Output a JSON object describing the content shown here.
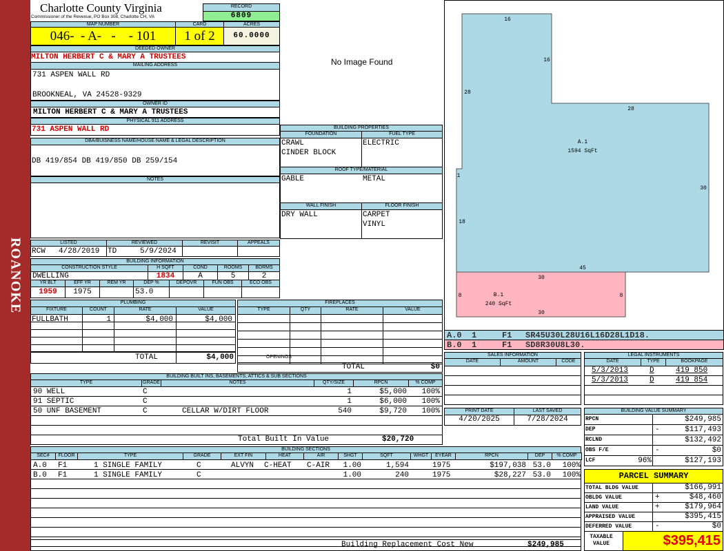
{
  "sidebar": {
    "label": "ROANOKE"
  },
  "header": {
    "title": "Charlotte County Virginia",
    "subtitle": "Commissioner of the Revenue, PO Box 308, Charlotte CH, VA",
    "record_label": "RECORD",
    "record": "6809"
  },
  "parcel": {
    "map_number_label": "MAP NUMBER",
    "map_number": "046-  - A-   -    - 101",
    "card_label": "CARD",
    "card": "1 of 2",
    "acres_label": "ACRES",
    "acres": "60.0000"
  },
  "owner": {
    "deeded_label": "DEEDED OWNER",
    "deeded": "MILTON HERBERT C & MARY A TRUSTEES",
    "mailing_label": "MAILING ADDRESS",
    "mailing_line1": "731 ASPEN WALL RD",
    "mailing_line2": "BROOKNEAL, VA 24528-9329",
    "owner_id_label": "OWNER ID",
    "owner_id": "MILTON HERBERT C & MARY A TRUSTEES",
    "physical_label": "PHYSICAL 911 ADDRESS",
    "physical": "731 ASPEN WALL RD",
    "dba_label": "DBA/BUISNESS NAME/HOUSE NAME & LEGAL DESCRIPTION",
    "dba": "DB 419/854 DB 419/850 DB 259/154",
    "notes_label": "NOTES"
  },
  "image": {
    "text": "No Image Found"
  },
  "listing": {
    "headers": [
      "LISTED",
      "REVIEWED",
      "REVISIT",
      "APPEALS"
    ],
    "listed_by": "RCW",
    "listed_date": "4/28/2019",
    "reviewed_by": "TD",
    "reviewed_date": "5/9/2024"
  },
  "building_info": {
    "title": "BUILDING INFORMATION",
    "headers1": [
      "CONSTRUCTION STYLE",
      "H SQFT",
      "COND",
      "ROOMS",
      "BDRMS"
    ],
    "values1": [
      "DWELLING",
      "1834",
      "A",
      "5",
      "2"
    ],
    "headers2": [
      "YR BLT",
      "EFF YR",
      "REM YR",
      "DEP %",
      "DEPOVR",
      "FUN OBS",
      "ECO OBS"
    ],
    "values2": [
      "1959",
      "1975",
      "",
      "53.0",
      "",
      "",
      ""
    ]
  },
  "building_properties": {
    "title": "BUILDING PROPERTIES",
    "foundation_label": "FOUNDATION",
    "foundation": [
      "CRAWL",
      "CINDER BLOCK"
    ],
    "fuel_label": "FUEL TYPE",
    "fuel": "ELECTRIC",
    "roof_label": "ROOF TYPE/MATERIAL",
    "roof_type": "GABLE",
    "roof_material": "METAL",
    "wall_label": "WALL FINISH",
    "wall": "DRY WALL",
    "floor_label": "FLOOR FINISH",
    "floor": [
      "CARPET",
      "VINYL"
    ]
  },
  "plumbing": {
    "title": "PLUMBING",
    "headers": [
      "FIXTURE",
      "COUNT",
      "RATE",
      "VALUE"
    ],
    "rows": [
      [
        "FULLBATH",
        "1",
        "$4,000",
        "$4,000"
      ]
    ],
    "total_label": "TOTAL",
    "total": "$4,000"
  },
  "fireplaces": {
    "title": "FIREPLACES",
    "headers": [
      "TYPE",
      "QTY",
      "RATE",
      "VALUE"
    ],
    "openings_label": "OPENINGS",
    "total_label": "TOTAL",
    "total": "$0"
  },
  "built_ins": {
    "title": "BUILDING BUILT INS, BASEMENTS, ATTICS & SUB SECTIONS",
    "headers": [
      "TYPE",
      "GRADE",
      "NOTES",
      "QTY/SIZE",
      "RPCN",
      "% COMP"
    ],
    "rows": [
      [
        "90 WELL",
        "C",
        "",
        "1",
        "$5,000",
        "100%"
      ],
      [
        "91 SEPTIC",
        "C",
        "",
        "1",
        "$6,000",
        "100%"
      ],
      [
        "50 UNF BASEMENT",
        "C",
        "CELLAR W/DIRT FLOOR",
        "540",
        "$9,720",
        "100%"
      ]
    ],
    "total_label": "Total Built In Value",
    "total": "$20,720"
  },
  "sections": {
    "title": "BUILDING SECTIONS",
    "headers": [
      "SEC#",
      "FLOOR",
      "TYPE",
      "GRADE",
      "EXT FIN",
      "HEAT",
      "AIR",
      "SHGT",
      "SQFT",
      "WHGT",
      "EYEAR",
      "RPCN",
      "DEP",
      "% COMP"
    ],
    "rows": [
      [
        "A.0",
        "F1",
        "1 SINGLE FAMILY",
        "C",
        "ALVYN",
        "C-HEAT",
        "C-AIR",
        "1.00",
        "1,594",
        "",
        "1975",
        "$197,038",
        "53.0",
        "100%"
      ],
      [
        "B.0",
        "F1",
        "1 SINGLE FAMILY",
        "C",
        "",
        "",
        "",
        "1.00",
        "240",
        "",
        "1975",
        "$28,227",
        "53.0",
        "100%"
      ]
    ],
    "total_label": "Building Replacement Cost New",
    "total": "$249,985"
  },
  "sketch": {
    "labels": [
      "16",
      "16",
      "28",
      "28",
      "A.1",
      "1594 SqFt",
      "1",
      "30",
      "18",
      "45",
      "30",
      "8",
      "B.1",
      "240 SqFt",
      "8",
      "30"
    ],
    "commands": [
      [
        "A.0",
        "1",
        "F1",
        "SR45U30L28U16L16D28L1D18."
      ],
      [
        "B.0",
        "1",
        "F1",
        "SD8R30U8L30."
      ]
    ],
    "colors": {
      "A": "#add8e6",
      "B": "#ffb6c1"
    }
  },
  "sales": {
    "title": "SALES INFORMATION",
    "headers": [
      "DATE",
      "AMOUNT",
      "CODE"
    ]
  },
  "legal": {
    "title": "LEGAL INSTRUMENTS",
    "headers": [
      "DATE",
      "TYPE",
      "BOOKPAGE"
    ],
    "rows": [
      [
        "5/3/2013",
        "D",
        "419 850"
      ],
      [
        "5/3/2013",
        "D",
        "419 854"
      ]
    ]
  },
  "dates": {
    "print_label": "PRINT DATE",
    "print": "4/20/2025",
    "saved_label": "LAST SAVED",
    "saved": "7/28/2024"
  },
  "value_summary": {
    "title": "BUILDING VALUE SUMMARY",
    "rows": [
      [
        "RPCN",
        "",
        "",
        "$249,985"
      ],
      [
        "DEP",
        "",
        "-",
        "$117,493"
      ],
      [
        "RCLND",
        "",
        "",
        "$132,492"
      ],
      [
        "OBS F/E",
        "",
        "-",
        "$0"
      ],
      [
        "LCF",
        "96%",
        "",
        "$127,193"
      ]
    ]
  },
  "parcel_summary": {
    "title": "PARCEL SUMMARY",
    "rows": [
      [
        "TOTAL BLDG VALUE",
        "",
        "$166,991"
      ],
      [
        "OBLDG VALUE",
        "+",
        "$48,460"
      ],
      [
        "LAND VALUE",
        "+",
        "$179,964"
      ],
      [
        "APPRAISED VALUE",
        "",
        "$395,415"
      ],
      [
        "DEFERRED VALUE",
        "-",
        "$0"
      ]
    ],
    "taxable_label": "TAXABLE VALUE",
    "taxable": "$395,415"
  },
  "colors": {
    "header_bg": "#add8e6",
    "highlight": "#ffff00",
    "record_bg": "#90ee90",
    "sidebar": "#a52a2a",
    "emphasis": "#d10000"
  }
}
